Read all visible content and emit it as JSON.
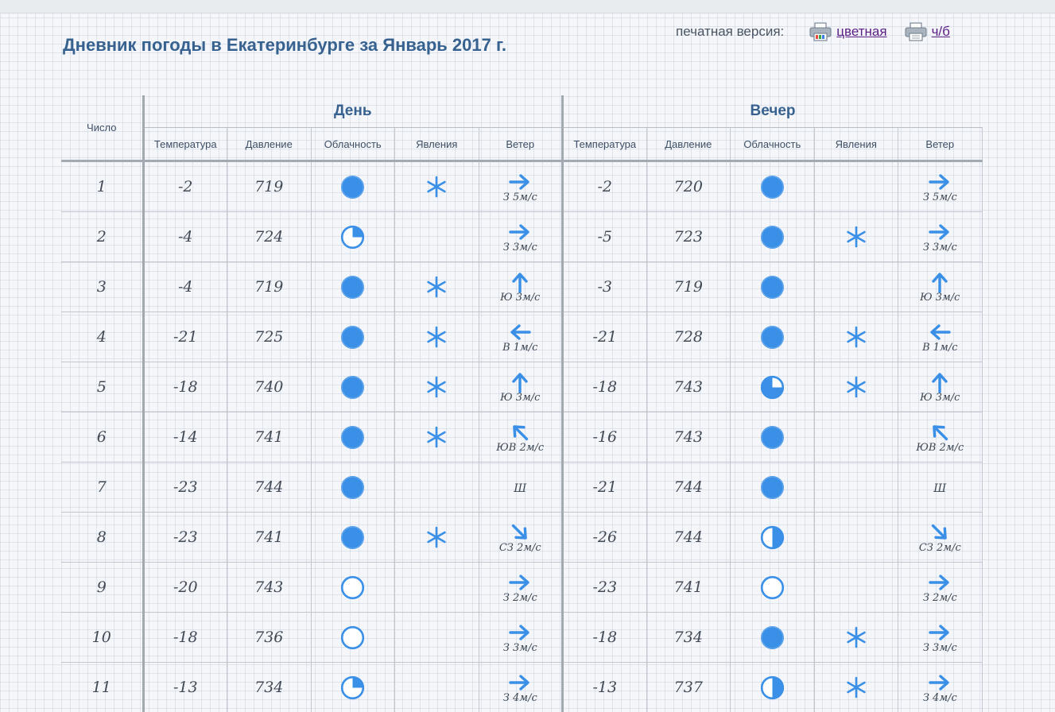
{
  "title": "Дневник погоды в Екатеринбурге за Январь 2017 г.",
  "print": {
    "label": "печатная версия:",
    "color_label": "цветная",
    "bw_label": "ч/б"
  },
  "headers": {
    "date": "Число",
    "day": "День",
    "evening": "Вечер",
    "columns": [
      "Температура",
      "Давление",
      "Облачность",
      "Явления",
      "Ветер"
    ]
  },
  "colors": {
    "accent": "#37618f",
    "icon": "#3a8fe6"
  },
  "rows": [
    {
      "date": "1",
      "day": {
        "temp": "-2",
        "pressure": "719",
        "cloud": "full",
        "phenomena": "snow",
        "wind_dir": "E",
        "wind_text": "З 5м/с"
      },
      "evening": {
        "temp": "-2",
        "pressure": "720",
        "cloud": "full",
        "phenomena": "",
        "wind_dir": "E",
        "wind_text": "З 5м/с"
      }
    },
    {
      "date": "2",
      "day": {
        "temp": "-4",
        "pressure": "724",
        "cloud": "quarter",
        "phenomena": "",
        "wind_dir": "E",
        "wind_text": "З 3м/с"
      },
      "evening": {
        "temp": "-5",
        "pressure": "723",
        "cloud": "full",
        "phenomena": "snow",
        "wind_dir": "E",
        "wind_text": "З 3м/с"
      }
    },
    {
      "date": "3",
      "day": {
        "temp": "-4",
        "pressure": "719",
        "cloud": "full",
        "phenomena": "snow",
        "wind_dir": "N",
        "wind_text": "Ю 3м/с"
      },
      "evening": {
        "temp": "-3",
        "pressure": "719",
        "cloud": "full",
        "phenomena": "",
        "wind_dir": "N",
        "wind_text": "Ю 3м/с"
      }
    },
    {
      "date": "4",
      "day": {
        "temp": "-21",
        "pressure": "725",
        "cloud": "full",
        "phenomena": "snow",
        "wind_dir": "W",
        "wind_text": "В 1м/с"
      },
      "evening": {
        "temp": "-21",
        "pressure": "728",
        "cloud": "full",
        "phenomena": "snow",
        "wind_dir": "W",
        "wind_text": "В 1м/с"
      }
    },
    {
      "date": "5",
      "day": {
        "temp": "-18",
        "pressure": "740",
        "cloud": "full",
        "phenomena": "snow",
        "wind_dir": "N",
        "wind_text": "Ю 3м/с"
      },
      "evening": {
        "temp": "-18",
        "pressure": "743",
        "cloud": "three_quarter",
        "phenomena": "snow",
        "wind_dir": "N",
        "wind_text": "Ю 3м/с"
      }
    },
    {
      "date": "6",
      "day": {
        "temp": "-14",
        "pressure": "741",
        "cloud": "full",
        "phenomena": "snow",
        "wind_dir": "NW",
        "wind_text": "ЮВ 2м/с"
      },
      "evening": {
        "temp": "-16",
        "pressure": "743",
        "cloud": "full",
        "phenomena": "",
        "wind_dir": "NW",
        "wind_text": "ЮВ 2м/с"
      }
    },
    {
      "date": "7",
      "day": {
        "temp": "-23",
        "pressure": "744",
        "cloud": "full",
        "phenomena": "",
        "wind_dir": "",
        "wind_text": "Ш"
      },
      "evening": {
        "temp": "-21",
        "pressure": "744",
        "cloud": "full",
        "phenomena": "",
        "wind_dir": "",
        "wind_text": "Ш"
      }
    },
    {
      "date": "8",
      "day": {
        "temp": "-23",
        "pressure": "741",
        "cloud": "full",
        "phenomena": "snow",
        "wind_dir": "SE",
        "wind_text": "СЗ 2м/с"
      },
      "evening": {
        "temp": "-26",
        "pressure": "744",
        "cloud": "half",
        "phenomena": "",
        "wind_dir": "SE",
        "wind_text": "СЗ 2м/с"
      }
    },
    {
      "date": "9",
      "day": {
        "temp": "-20",
        "pressure": "743",
        "cloud": "empty",
        "phenomena": "",
        "wind_dir": "E",
        "wind_text": "З 2м/с"
      },
      "evening": {
        "temp": "-23",
        "pressure": "741",
        "cloud": "empty",
        "phenomena": "",
        "wind_dir": "E",
        "wind_text": "З 2м/с"
      }
    },
    {
      "date": "10",
      "day": {
        "temp": "-18",
        "pressure": "736",
        "cloud": "empty",
        "phenomena": "",
        "wind_dir": "E",
        "wind_text": "З 3м/с"
      },
      "evening": {
        "temp": "-18",
        "pressure": "734",
        "cloud": "full",
        "phenomena": "snow",
        "wind_dir": "E",
        "wind_text": "З 3м/с"
      }
    },
    {
      "date": "11",
      "day": {
        "temp": "-13",
        "pressure": "734",
        "cloud": "quarter",
        "phenomena": "",
        "wind_dir": "E",
        "wind_text": "З 4м/с"
      },
      "evening": {
        "temp": "-13",
        "pressure": "737",
        "cloud": "half",
        "phenomena": "snow",
        "wind_dir": "E",
        "wind_text": "З 4м/с"
      }
    }
  ]
}
